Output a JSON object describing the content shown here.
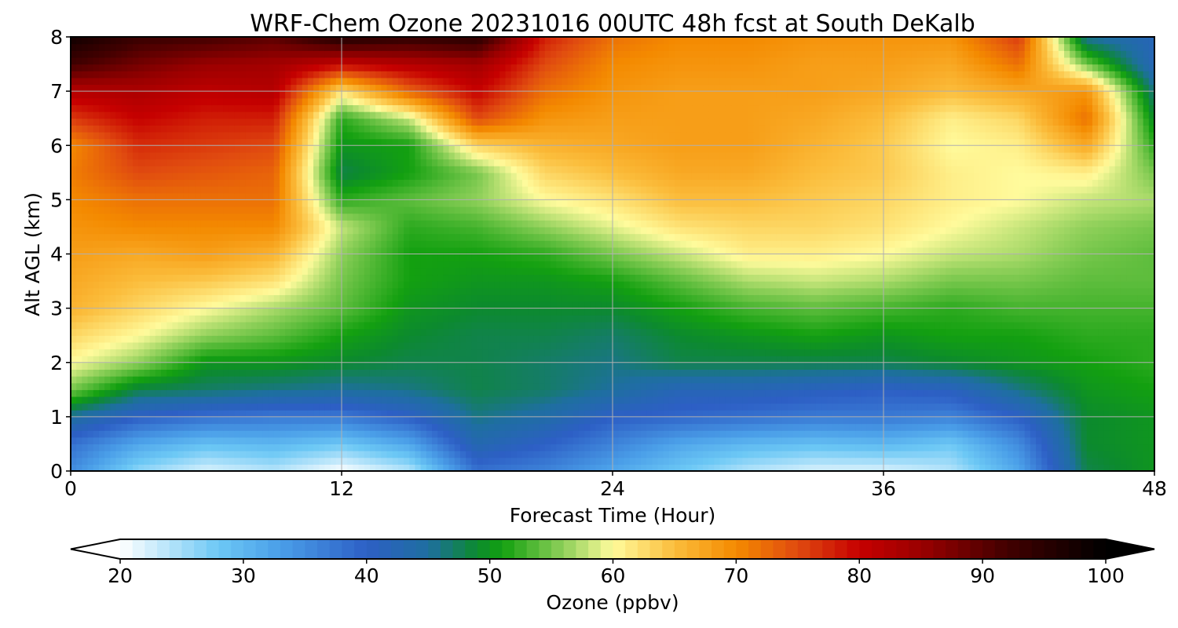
{
  "chart_data": {
    "type": "heatmap",
    "title": "WRF-Chem Ozone  20231016 00UTC 48h fcst at South DeKalb",
    "xlabel": "Forecast Time (Hour)",
    "ylabel": "Alt AGL (km)",
    "xlim": [
      0,
      48
    ],
    "ylim": [
      0,
      8
    ],
    "xticks": [
      0,
      12,
      24,
      36,
      48
    ],
    "yticks": [
      0,
      1,
      2,
      3,
      4,
      5,
      6,
      7,
      8
    ],
    "grid": true,
    "x": [
      0,
      3,
      6,
      9,
      12,
      15,
      18,
      21,
      24,
      27,
      30,
      33,
      36,
      39,
      42,
      45,
      48
    ],
    "y": [
      0,
      0.5,
      1,
      1.5,
      2,
      2.5,
      3,
      3.5,
      4,
      4.5,
      5,
      5.5,
      6,
      6.5,
      7,
      7.5,
      8
    ],
    "z": [
      [
        35,
        26,
        22,
        24,
        20,
        24,
        38,
        36,
        32,
        28,
        24,
        22,
        22,
        24,
        32,
        48,
        50
      ],
      [
        38,
        32,
        29,
        30,
        28,
        32,
        43,
        40,
        36,
        32,
        30,
        29,
        30,
        28,
        35,
        49,
        50
      ],
      [
        45,
        40,
        38,
        37,
        37,
        40,
        46,
        44,
        40,
        39,
        38,
        37,
        37,
        36,
        40,
        49,
        50
      ],
      [
        55,
        48,
        47,
        46,
        45,
        46,
        48,
        47,
        45,
        42,
        42,
        41,
        40,
        41,
        46,
        50,
        51
      ],
      [
        60,
        56,
        50,
        50,
        49,
        48,
        48,
        47,
        46,
        48,
        48,
        48,
        48,
        49,
        50,
        51,
        52
      ],
      [
        63,
        60,
        56,
        54,
        51,
        49,
        48,
        48,
        47,
        49,
        50,
        51,
        50,
        51,
        51,
        52,
        52
      ],
      [
        66,
        63,
        60,
        57,
        54,
        50,
        49,
        49,
        49,
        51,
        53,
        54,
        53,
        52,
        53,
        53,
        53
      ],
      [
        67,
        65,
        64,
        62,
        55,
        51,
        50,
        50,
        51,
        54,
        57,
        58,
        57,
        55,
        55,
        54,
        54
      ],
      [
        68,
        67,
        68,
        66,
        56,
        51,
        51,
        52,
        55,
        58,
        61,
        61,
        60,
        58,
        57,
        55,
        54
      ],
      [
        69,
        70,
        70,
        70,
        58,
        52,
        53,
        56,
        59,
        62,
        63,
        63,
        62,
        60,
        58,
        56,
        55
      ],
      [
        70,
        72,
        72,
        72,
        52,
        54,
        56,
        60,
        62,
        65,
        65,
        64,
        63,
        61,
        60,
        58,
        57
      ],
      [
        71,
        75,
        74,
        73,
        48,
        51,
        55,
        63,
        65,
        67,
        67,
        65,
        64,
        61,
        60,
        61,
        55
      ],
      [
        70,
        77,
        76,
        75,
        50,
        51,
        63,
        66,
        67,
        68,
        68,
        66,
        64,
        60,
        61,
        67,
        52
      ],
      [
        76,
        80,
        78,
        78,
        52,
        58,
        75,
        69,
        68,
        68,
        68,
        67,
        65,
        61,
        63,
        72,
        49
      ],
      [
        82,
        83,
        81,
        82,
        62,
        73,
        80,
        72,
        69,
        68,
        68,
        68,
        67,
        65,
        67,
        69,
        46
      ],
      [
        92,
        88,
        85,
        84,
        80,
        82,
        84,
        75,
        70,
        69,
        69,
        68,
        68,
        67,
        72,
        55,
        42
      ],
      [
        98,
        93,
        92,
        90,
        96,
        94,
        95,
        78,
        72,
        70,
        70,
        69,
        69,
        69,
        76,
        45,
        42
      ]
    ],
    "colorbar": {
      "label": "Ozone  (ppbv)",
      "min": 20,
      "max": 100,
      "extend": "both",
      "tick_values": [
        20,
        30,
        40,
        50,
        60,
        70,
        80,
        90,
        100
      ],
      "tick_labels": [
        "20",
        "30",
        "40",
        "50",
        "60",
        "70",
        "80",
        "90",
        "100"
      ],
      "stops": [
        {
          "value": 20,
          "color": "#ffffff"
        },
        {
          "value": 28,
          "color": "#6cc8f5"
        },
        {
          "value": 33,
          "color": "#4a9ee8"
        },
        {
          "value": 40,
          "color": "#2d5fc5"
        },
        {
          "value": 45,
          "color": "#1e6fa0"
        },
        {
          "value": 49,
          "color": "#0c8a2e"
        },
        {
          "value": 51,
          "color": "#13a010"
        },
        {
          "value": 56,
          "color": "#8fd05a"
        },
        {
          "value": 60,
          "color": "#fffb9c"
        },
        {
          "value": 65,
          "color": "#fbbd3c"
        },
        {
          "value": 70,
          "color": "#f48a00"
        },
        {
          "value": 75,
          "color": "#e04a10"
        },
        {
          "value": 80,
          "color": "#c60000"
        },
        {
          "value": 85,
          "color": "#9a0000"
        },
        {
          "value": 92,
          "color": "#420000"
        },
        {
          "value": 100,
          "color": "#000000"
        }
      ]
    }
  }
}
